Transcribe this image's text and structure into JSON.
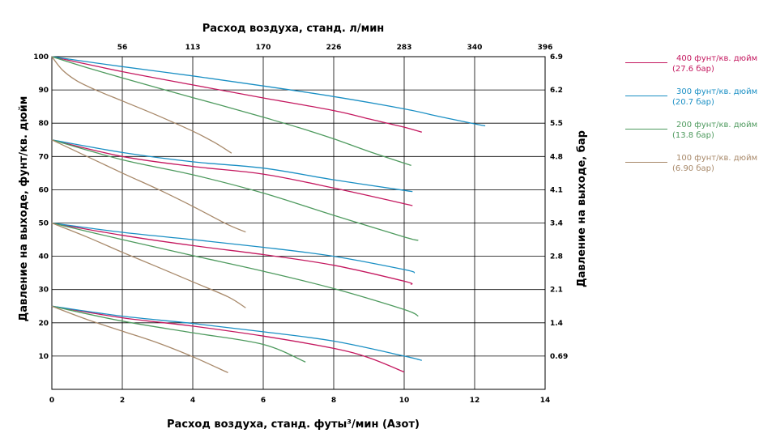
{
  "colors": {
    "p400": "#c4185f",
    "p300": "#1a8fc4",
    "p200": "#4e9a5e",
    "p100": "#a8896a",
    "grid": "#000000",
    "text": "#000000"
  },
  "chart_data": {
    "type": "line",
    "xlabel": "Расход воздуха, станд. футы³/мин (Азот)",
    "ylabel": "Давление на выходе, фунт/кв. дюйм",
    "top_xlabel": "Расход воздуха, станд. л/мин",
    "right_ylabel": "Давление на выходе, бар",
    "xlim": [
      0,
      14
    ],
    "ylim": [
      0,
      100
    ],
    "x_ticks": [
      "0",
      "2",
      "4",
      "6",
      "8",
      "10",
      "12",
      "14"
    ],
    "y_ticks": [
      "10",
      "20",
      "30",
      "40",
      "50",
      "60",
      "70",
      "80",
      "90",
      "100"
    ],
    "top_ticks": [
      "56",
      "113",
      "170",
      "226",
      "283",
      "340",
      "396"
    ],
    "right_ticks": [
      "0.69",
      "1.4",
      "2.1",
      "2.8",
      "3.4",
      "4.1",
      "4.8",
      "5.5",
      "6.2",
      "6.9"
    ],
    "legend": [
      {
        "key": "p400",
        "line1": "400 фунт/кв. дюйм",
        "line2": "(27.6 бар)"
      },
      {
        "key": "p300",
        "line1": "300 фунт/кв. дюйм",
        "line2": "(20.7 бар)"
      },
      {
        "key": "p200",
        "line1": "200 фунт/кв. дюйм",
        "line2": "(13.8 бар)"
      },
      {
        "key": "p100",
        "line1": "100 фунт/кв. дюйм",
        "line2": "(6.90 бар)"
      }
    ],
    "groups": [
      {
        "set_pressure": 100,
        "series": [
          {
            "key": "p400",
            "points": [
              [
                0,
                100
              ],
              [
                2,
                95.5
              ],
              [
                4,
                91.5
              ],
              [
                6,
                87.6
              ],
              [
                8,
                83.8
              ],
              [
                9,
                81.3
              ],
              [
                10,
                78.8
              ],
              [
                10.5,
                77.3
              ]
            ]
          },
          {
            "key": "p300",
            "points": [
              [
                0,
                100
              ],
              [
                2,
                97
              ],
              [
                4,
                94.2
              ],
              [
                6,
                91.2
              ],
              [
                8,
                88
              ],
              [
                10,
                84.3
              ],
              [
                11,
                82
              ],
              [
                12,
                79.8
              ],
              [
                12.3,
                79.2
              ]
            ]
          },
          {
            "key": "p200",
            "points": [
              [
                0,
                100
              ],
              [
                1,
                96.7
              ],
              [
                2,
                93.6
              ],
              [
                4,
                87.7
              ],
              [
                5,
                84.8
              ],
              [
                6,
                81.8
              ],
              [
                7,
                78.7
              ],
              [
                8,
                75.3
              ],
              [
                9,
                71.5
              ],
              [
                10.2,
                67.3
              ]
            ]
          },
          {
            "key": "p100",
            "points": [
              [
                0,
                100
              ],
              [
                0.3,
                96
              ],
              [
                0.7,
                92.8
              ],
              [
                1.2,
                90.2
              ],
              [
                2,
                86.7
              ],
              [
                3,
                82.3
              ],
              [
                4,
                77.6
              ],
              [
                4.6,
                74.3
              ],
              [
                5.1,
                71
              ]
            ]
          }
        ]
      },
      {
        "set_pressure": 75,
        "series": [
          {
            "key": "p400",
            "points": [
              [
                0,
                75
              ],
              [
                2,
                70
              ],
              [
                4,
                67
              ],
              [
                6,
                64.7
              ],
              [
                8,
                60.5
              ],
              [
                10,
                55.8
              ],
              [
                10.2,
                55.3
              ]
            ]
          },
          {
            "key": "p300",
            "points": [
              [
                0,
                75
              ],
              [
                2,
                71.2
              ],
              [
                4,
                68.4
              ],
              [
                6,
                66.5
              ],
              [
                8,
                63
              ],
              [
                10,
                59.8
              ],
              [
                10.2,
                59.5
              ]
            ]
          },
          {
            "key": "p200",
            "points": [
              [
                0,
                75
              ],
              [
                2,
                69
              ],
              [
                4,
                64.5
              ],
              [
                6,
                59
              ],
              [
                8,
                52.3
              ],
              [
                10,
                45.8
              ],
              [
                10.4,
                44.8
              ]
            ]
          },
          {
            "key": "p100",
            "points": [
              [
                0,
                75
              ],
              [
                1,
                70
              ],
              [
                2,
                65
              ],
              [
                3,
                60.2
              ],
              [
                4,
                55
              ],
              [
                5,
                49.5
              ],
              [
                5.5,
                47.3
              ]
            ]
          }
        ]
      },
      {
        "set_pressure": 50,
        "series": [
          {
            "key": "p400",
            "points": [
              [
                0,
                50
              ],
              [
                2,
                46.3
              ],
              [
                4,
                43.2
              ],
              [
                6,
                40.5
              ],
              [
                8,
                37.3
              ],
              [
                10,
                32.5
              ],
              [
                10.2,
                31.5
              ]
            ]
          },
          {
            "key": "p300",
            "points": [
              [
                0,
                50
              ],
              [
                2,
                47.2
              ],
              [
                4,
                45
              ],
              [
                6,
                42.7
              ],
              [
                8,
                40
              ],
              [
                10,
                36
              ],
              [
                10.3,
                35
              ]
            ]
          },
          {
            "key": "p200",
            "points": [
              [
                0,
                50
              ],
              [
                2,
                45
              ],
              [
                4,
                40.2
              ],
              [
                6,
                35.5
              ],
              [
                8,
                30.3
              ],
              [
                10,
                24
              ],
              [
                10.4,
                22
              ]
            ]
          },
          {
            "key": "p100",
            "points": [
              [
                0,
                50
              ],
              [
                1,
                45.8
              ],
              [
                2,
                41.2
              ],
              [
                3,
                36.8
              ],
              [
                4,
                32.3
              ],
              [
                5,
                27.8
              ],
              [
                5.5,
                24.5
              ]
            ]
          }
        ]
      },
      {
        "set_pressure": 25,
        "series": [
          {
            "key": "p400",
            "points": [
              [
                0,
                25
              ],
              [
                2,
                21.5
              ],
              [
                4,
                19
              ],
              [
                6,
                16
              ],
              [
                8,
                12.3
              ],
              [
                9,
                9.5
              ],
              [
                10,
                5.2
              ]
            ]
          },
          {
            "key": "p300",
            "points": [
              [
                0,
                25
              ],
              [
                2,
                22
              ],
              [
                4,
                19.8
              ],
              [
                6,
                17.3
              ],
              [
                8,
                14.5
              ],
              [
                10,
                10
              ],
              [
                10.5,
                8.7
              ]
            ]
          },
          {
            "key": "p200",
            "points": [
              [
                0,
                25
              ],
              [
                2,
                20.5
              ],
              [
                4,
                17
              ],
              [
                6,
                13.5
              ],
              [
                7.2,
                8.2
              ]
            ]
          },
          {
            "key": "p100",
            "points": [
              [
                0,
                25
              ],
              [
                1,
                21
              ],
              [
                2,
                17.5
              ],
              [
                3,
                14
              ],
              [
                4,
                9.8
              ],
              [
                5,
                5
              ]
            ]
          }
        ]
      }
    ]
  }
}
